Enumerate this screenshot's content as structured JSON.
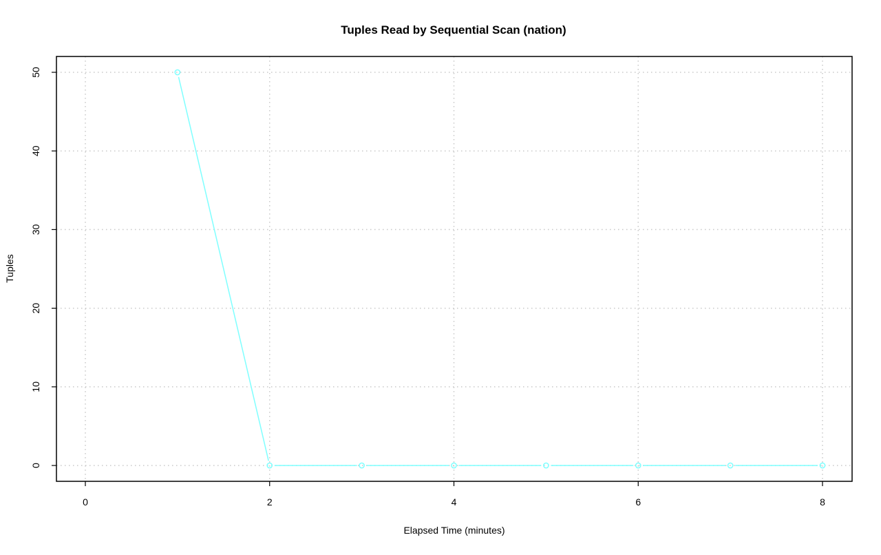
{
  "chart_data": {
    "type": "line",
    "title": "Tuples Read by Sequential Scan (nation)",
    "xlabel": "Elapsed Time (minutes)",
    "ylabel": "Tuples",
    "xlim": [
      0,
      8
    ],
    "ylim": [
      0,
      50
    ],
    "x_ticks": [
      "0",
      "2",
      "4",
      "6",
      "8"
    ],
    "y_ticks": [
      "0",
      "10",
      "20",
      "30",
      "40",
      "50"
    ],
    "grid": true,
    "series": [
      {
        "x": [
          1,
          2,
          3,
          4,
          5,
          6,
          7,
          8
        ],
        "y": [
          50,
          0,
          0,
          0,
          0,
          0,
          0,
          0
        ],
        "color": "#7fffff",
        "markers": "open-circle"
      }
    ]
  }
}
